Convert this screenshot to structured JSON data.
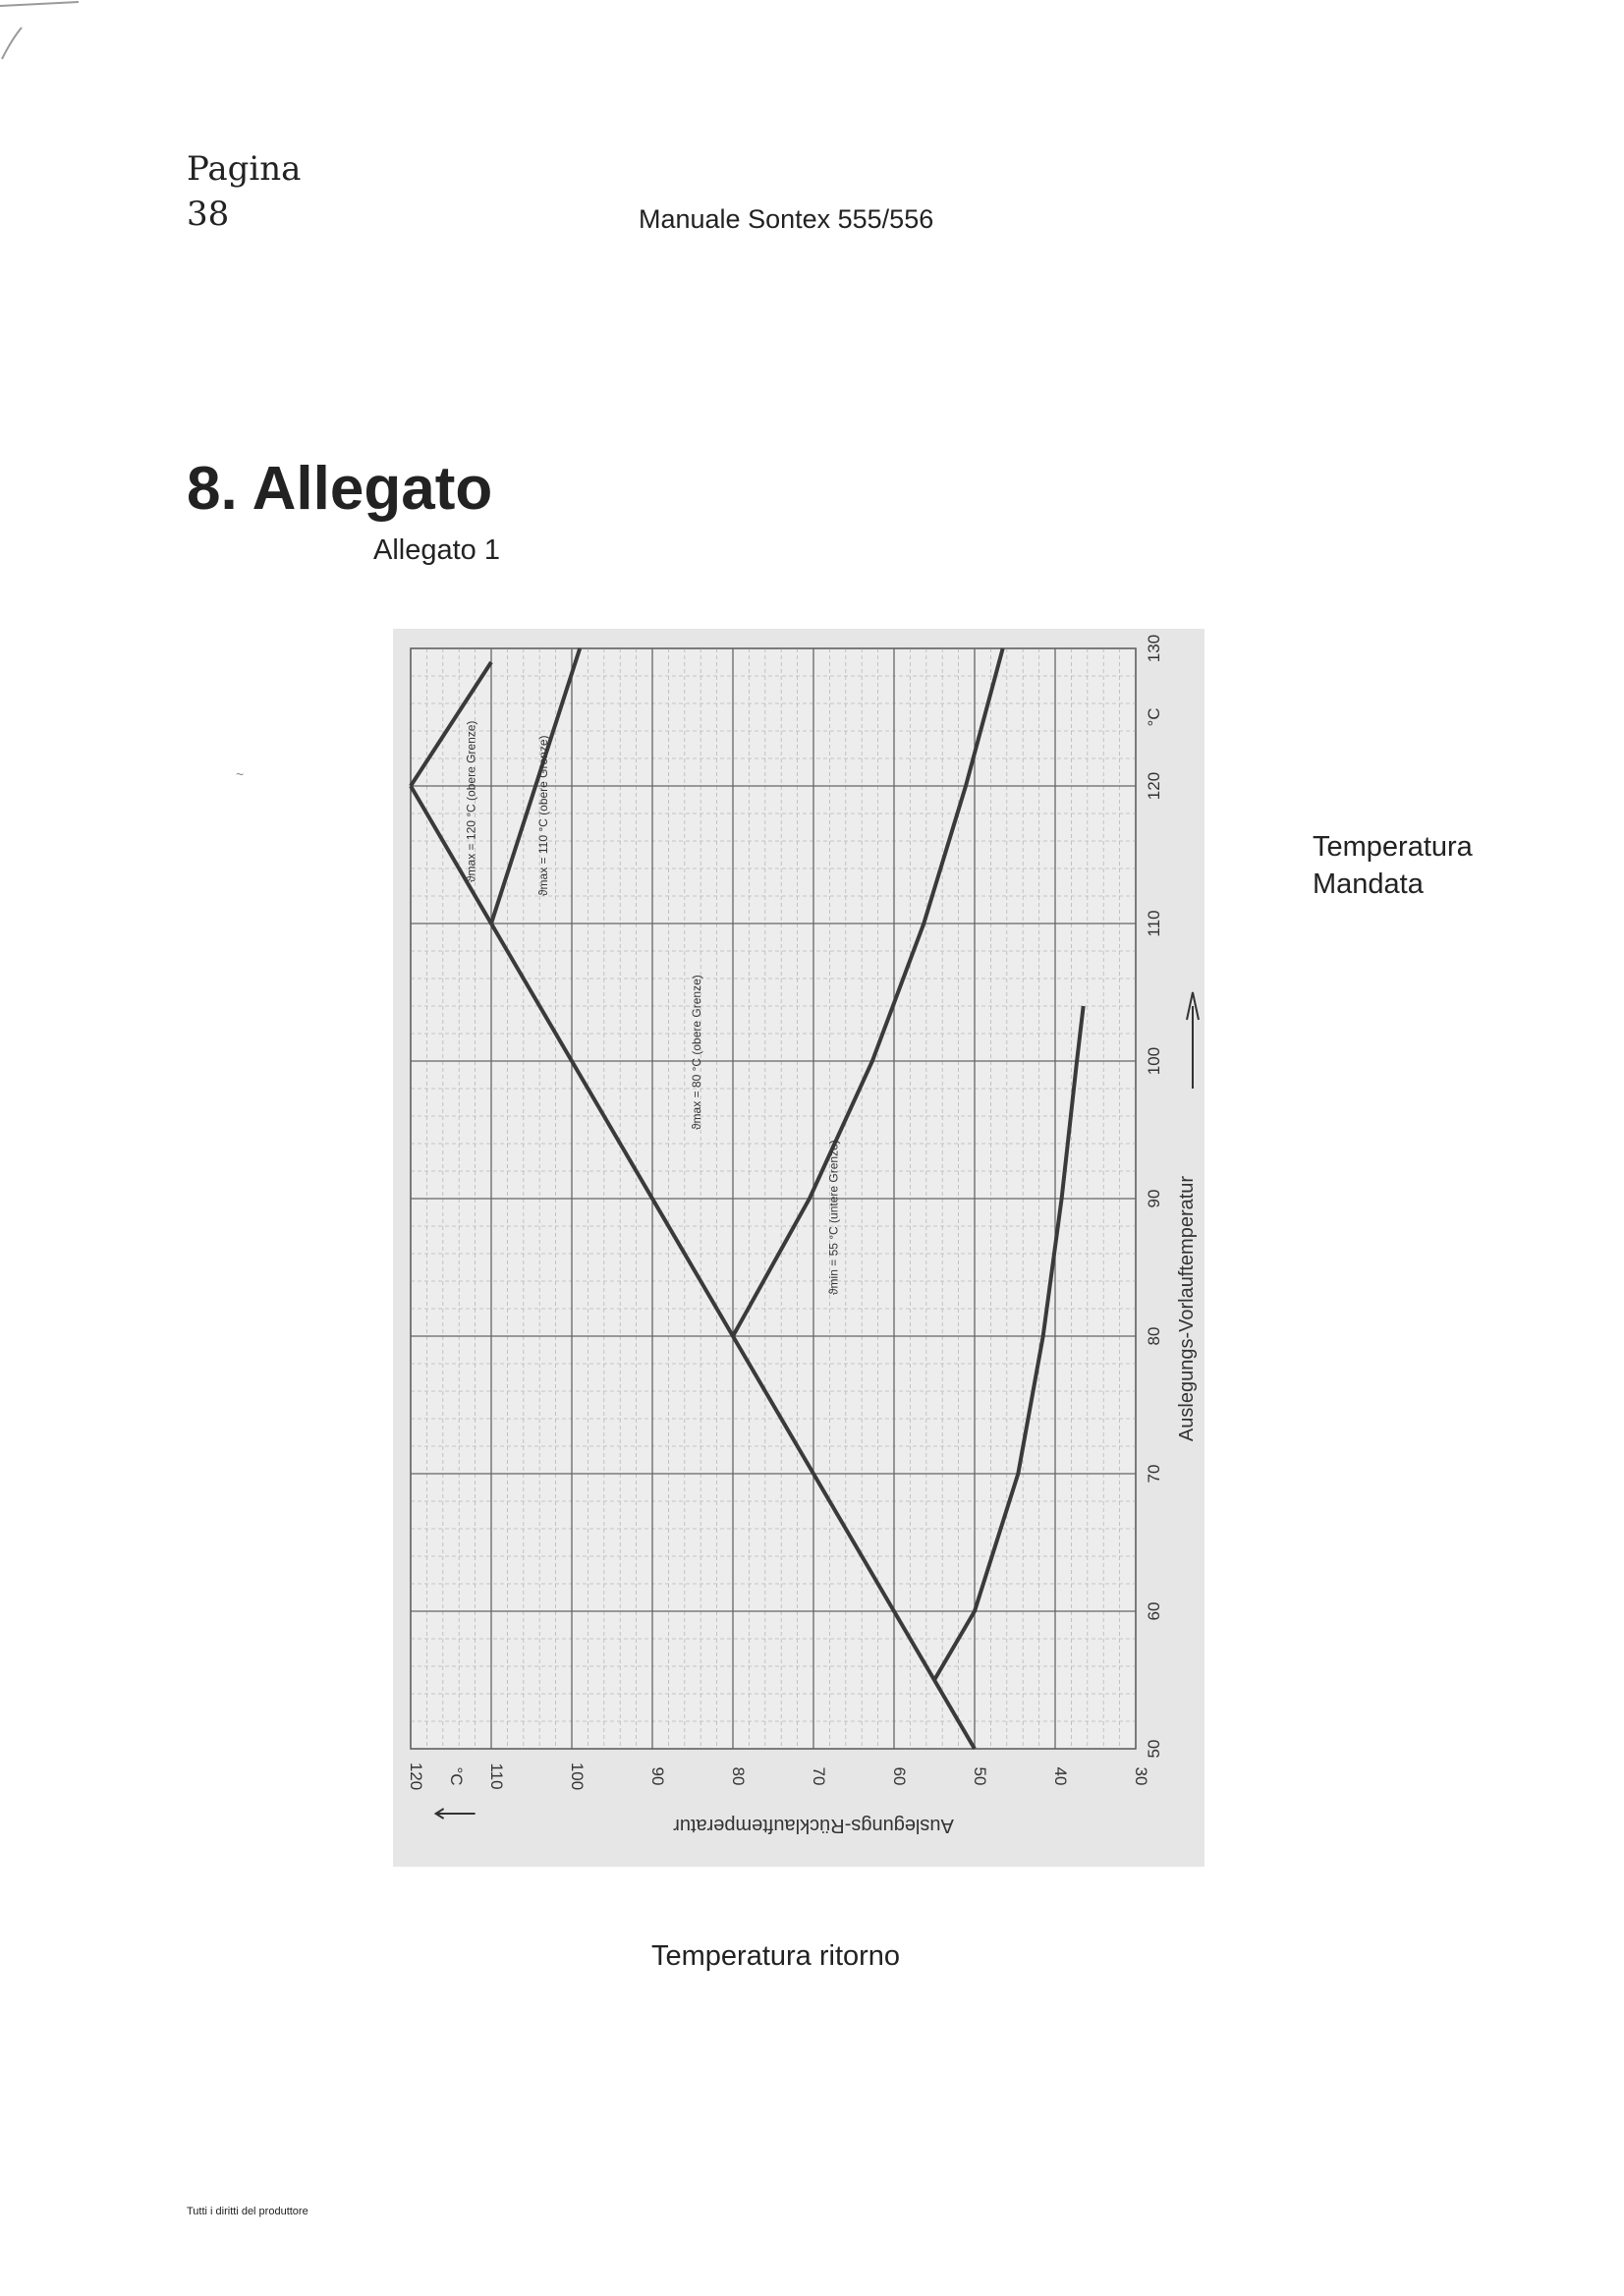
{
  "header": {
    "page_label": "Pagina",
    "page_number": "38",
    "title": "Manuale Sontex 555/556"
  },
  "section": {
    "title": "8. Allegato",
    "annex_label": "Allegato 1"
  },
  "stray_mark": "~",
  "side_label_lines": [
    "Temperatura",
    "Mandata"
  ],
  "bottom_label": "Temperatura ritorno",
  "footer": "Tutti i diritti del produttore",
  "chart_data": {
    "type": "line",
    "ylabel": "Auslegungs-Vorlauftemperatur",
    "xlabel": "Auslegungs-Rücklauftemperatur",
    "unit": "°C",
    "supply_ticks": [
      "50",
      "60",
      "70",
      "80",
      "90",
      "100",
      "110",
      "120",
      "°C",
      "130"
    ],
    "return_ticks": [
      "120",
      "°C",
      "110",
      "100",
      "90",
      "80",
      "70",
      "60",
      "50",
      "40",
      "30"
    ],
    "supply_range": [
      50,
      130
    ],
    "return_range": [
      30,
      120
    ],
    "grid": true,
    "series": [
      {
        "name": "ϑmax = 120 °C (obere Grenze)",
        "points": [
          [
            120,
            120
          ],
          [
            129,
            110
          ]
        ]
      },
      {
        "name": "ϑmax = 110 °C (obere Grenze)",
        "points": [
          [
            110,
            110
          ],
          [
            130,
            99
          ]
        ]
      },
      {
        "name": "ϑmax = 80 °C (obere Grenze)",
        "points": [
          [
            80,
            80
          ],
          [
            90,
            70.5
          ],
          [
            100,
            62.7
          ],
          [
            110,
            56.3
          ],
          [
            120,
            51.1
          ],
          [
            130,
            46.5
          ]
        ]
      },
      {
        "name": "ϑmin = 55 °C (untere Grenze)",
        "points": [
          [
            55,
            55
          ],
          [
            60,
            50
          ],
          [
            70,
            44.6
          ],
          [
            80,
            41.5
          ],
          [
            90,
            39.2
          ],
          [
            100,
            37.3
          ],
          [
            104,
            36.5
          ]
        ]
      },
      {
        "name": "",
        "points": [
          [
            50,
            50
          ],
          [
            120,
            120
          ]
        ]
      }
    ]
  }
}
